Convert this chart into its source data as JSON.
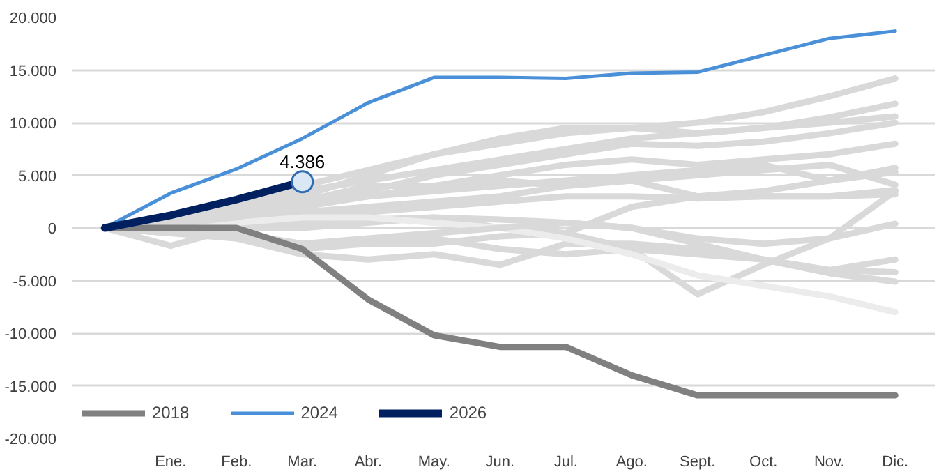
{
  "chart_data": {
    "type": "line",
    "categories": [
      null,
      "Ene.",
      "Feb.",
      "Mar.",
      "Abr.",
      "May.",
      "Jun.",
      "Jul.",
      "Ago.",
      "Sept.",
      "Oct.",
      "Nov.",
      "Dic."
    ],
    "ylim": [
      -20000,
      20000
    ],
    "yticks": [
      {
        "value": -20000,
        "label": "-20.000"
      },
      {
        "value": -15000,
        "label": "-15.000"
      },
      {
        "value": -10000,
        "label": "-10.000"
      },
      {
        "value": -5000,
        "label": "-5.000"
      },
      0,
      {
        "value": 5000,
        "label": "5.000"
      },
      {
        "value": 10000,
        "label": "10.000"
      },
      {
        "value": 15000,
        "label": "15.000"
      },
      {
        "value": 20000,
        "label": "20.000"
      }
    ],
    "grid": "y",
    "legend": "bottom left",
    "series": [
      {
        "color": "#d9d9d9",
        "values": [
          0,
          1000,
          2500,
          4000,
          5500,
          7000,
          8000,
          9000,
          9500,
          10000,
          11000,
          12500,
          14200
        ]
      },
      {
        "color": "#d9d9d9",
        "values": [
          0,
          500,
          1500,
          3000,
          5000,
          7000,
          8500,
          9500,
          9500,
          9000,
          9500,
          10500,
          11800
        ]
      },
      {
        "color": "#d9d9d9",
        "values": [
          0,
          800,
          2000,
          3500,
          4500,
          5500,
          6500,
          7500,
          8500,
          9000,
          9500,
          10000,
          10600
        ]
      },
      {
        "color": "#d9d9d9",
        "values": [
          0,
          300,
          1000,
          2000,
          3500,
          5000,
          6000,
          7000,
          8000,
          7800,
          8200,
          9000,
          10000
        ]
      },
      {
        "color": "#d9d9d9",
        "values": [
          0,
          0,
          1000,
          2000,
          3000,
          4000,
          5000,
          6000,
          6500,
          6000,
          6500,
          7000,
          8000
        ]
      },
      {
        "color": "#d9d9d9",
        "values": [
          0,
          500,
          1500,
          2500,
          3000,
          3500,
          4000,
          4500,
          5000,
          5500,
          6000,
          4500,
          5700
        ]
      },
      {
        "color": "#d9d9d9",
        "values": [
          0,
          200,
          800,
          1500,
          2000,
          2500,
          3000,
          4000,
          4500,
          3000,
          3500,
          4500,
          5300
        ]
      },
      {
        "color": "#d9d9d9",
        "values": [
          0,
          -1700,
          0,
          1000,
          1500,
          2000,
          2500,
          3000,
          3000,
          2800,
          3000,
          3000,
          3600
        ]
      },
      {
        "color": "#d9d9d9",
        "values": [
          0,
          -500,
          -1000,
          -1500,
          -1500,
          -1500,
          -800,
          -500,
          2000,
          3000,
          3000,
          3000,
          3200
        ]
      },
      {
        "color": "#d9d9d9",
        "values": [
          0,
          0,
          500,
          500,
          800,
          1000,
          800,
          500,
          0,
          -1000,
          -1500,
          -1000,
          400
        ]
      },
      {
        "color": "#d9d9d9",
        "values": [
          0,
          -500,
          0,
          0,
          500,
          1000,
          0,
          -500,
          -2000,
          -6300,
          -3500,
          -1000,
          3500
        ]
      },
      {
        "color": "#d9d9d9",
        "values": [
          0,
          0,
          -500,
          -2000,
          -1500,
          -1000,
          -2000,
          -2500,
          -2000,
          -2500,
          -3000,
          -4000,
          -3000
        ]
      },
      {
        "color": "#d9d9d9",
        "values": [
          0,
          -300,
          -1000,
          -2500,
          -3000,
          -2500,
          -3500,
          -1500,
          -1500,
          -2000,
          -3000,
          -4000,
          -4200
        ]
      },
      {
        "color": "#ececec",
        "values": [
          0,
          0,
          500,
          1000,
          1000,
          500,
          0,
          -1000,
          -2500,
          -4500,
          -5500,
          -6500,
          -8000
        ]
      },
      {
        "color": "#d9d9d9",
        "values": [
          0,
          0,
          -500,
          -1500,
          -1000,
          -500,
          0,
          500,
          0,
          -1500,
          -3000,
          -4300,
          -5100
        ]
      },
      {
        "color": "#d9d9d9",
        "values": [
          0,
          300,
          1000,
          2500,
          4000,
          4000,
          4500,
          4000,
          4500,
          5000,
          5500,
          6000,
          4100
        ]
      },
      {
        "name": "2018",
        "color": "#808080",
        "values": [
          0,
          0,
          0,
          -2000,
          -6800,
          -10200,
          -11300,
          -11300,
          -14000,
          -15900,
          -15900,
          -15900,
          -15900
        ]
      },
      {
        "name": "2024",
        "color": "#4a90d9",
        "values": [
          0,
          3300,
          5600,
          8500,
          11900,
          14300,
          14300,
          14200,
          14700,
          14800,
          16400,
          18000,
          18700
        ]
      },
      {
        "name": "2026",
        "color": "#002060",
        "values": [
          0,
          1200,
          2700,
          4386,
          null,
          null,
          null,
          null,
          null,
          null,
          null,
          null,
          null
        ],
        "value_labels": [
          null,
          null,
          null,
          "4.386",
          null,
          null,
          null,
          null,
          null,
          null,
          null,
          null,
          null
        ]
      }
    ]
  }
}
